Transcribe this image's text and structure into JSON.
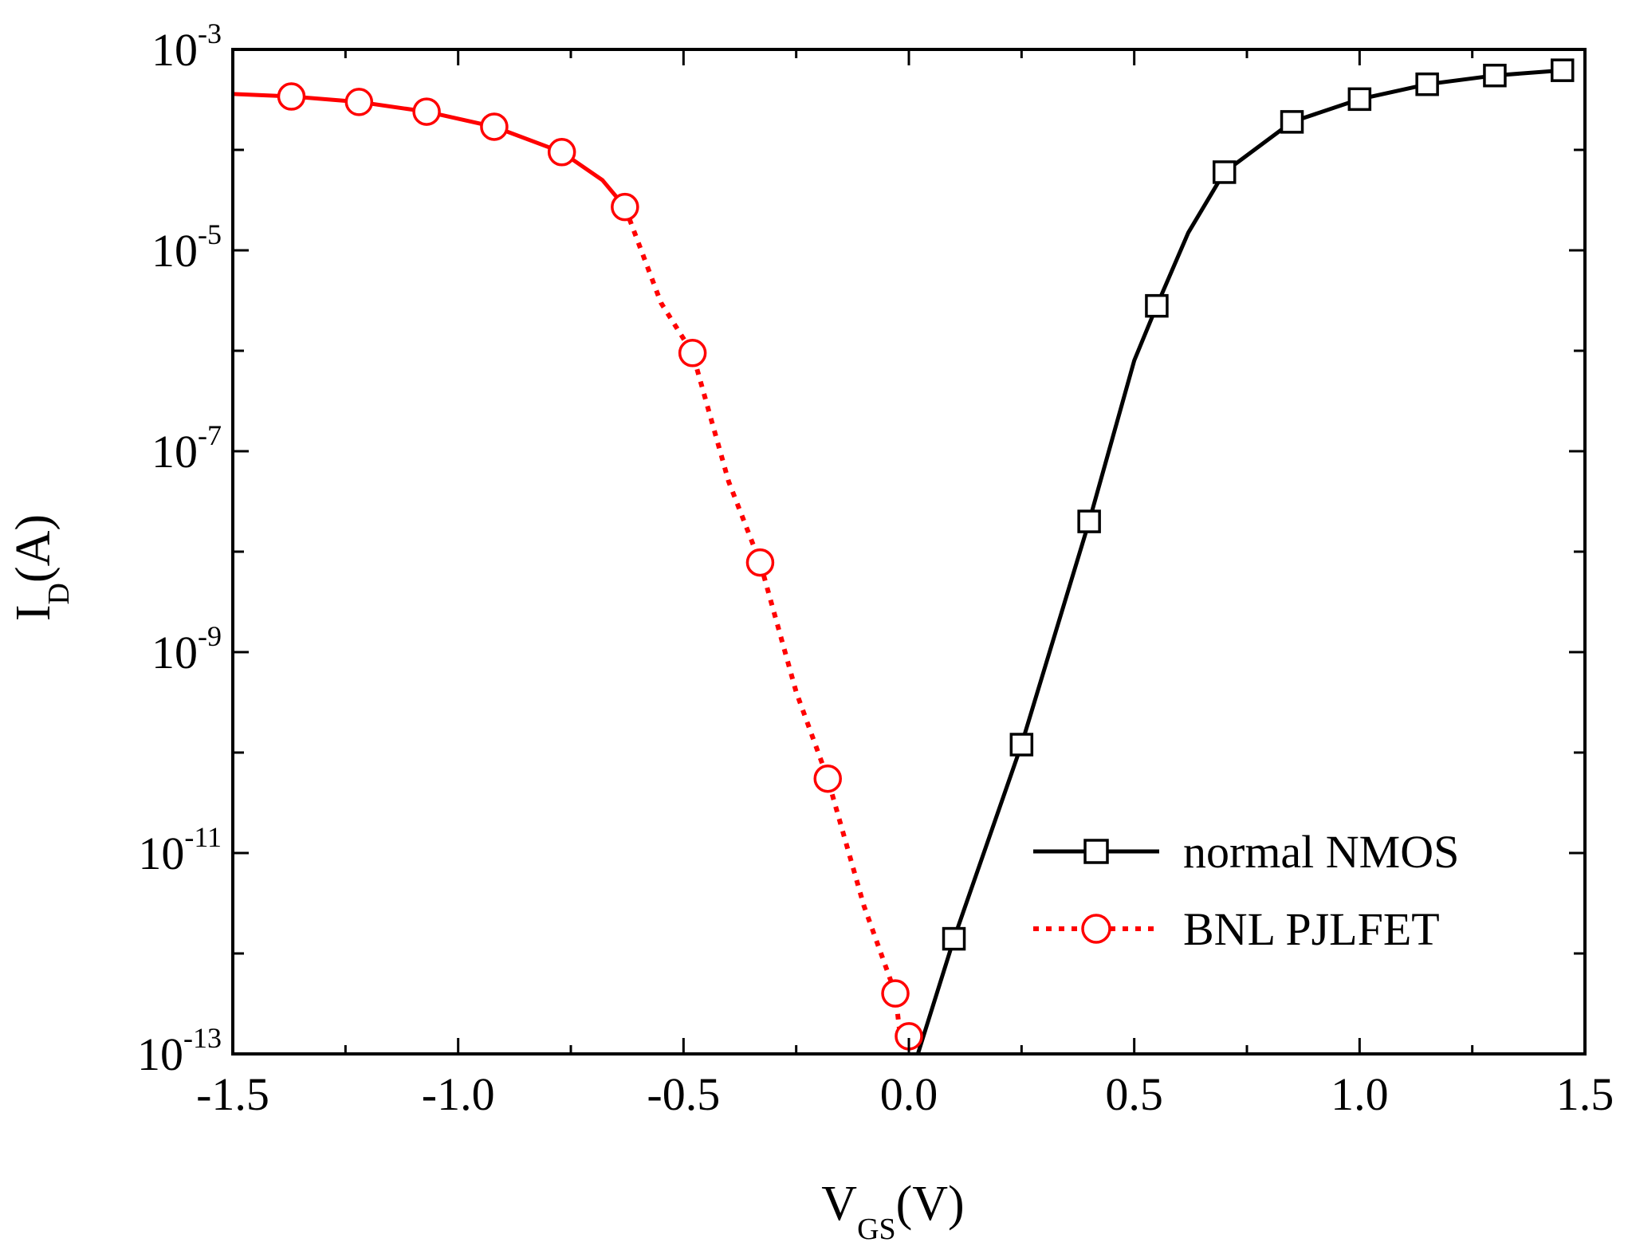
{
  "chart_data": {
    "type": "line",
    "yscale": "log",
    "xlabel": {
      "main": "V",
      "sub": "GS",
      "unit": "(V)"
    },
    "ylabel": {
      "main": "I",
      "sub": "D",
      "unit": "(A)"
    },
    "xlim": [
      -1.5,
      1.5
    ],
    "ylim": [
      1e-13,
      0.001
    ],
    "xticks": [
      -1.5,
      -1.0,
      -0.5,
      0.0,
      0.5,
      1.0,
      1.5
    ],
    "xtick_labels": [
      "-1.5",
      "-1.0",
      "-0.5",
      "0.0",
      "0.5",
      "1.0",
      "1.5"
    ],
    "yticks": [
      1e-13,
      1e-11,
      1e-09,
      1e-07,
      1e-05,
      0.001
    ],
    "ytick_labels": [
      {
        "base": "10",
        "exp": "-13"
      },
      {
        "base": "10",
        "exp": "-11"
      },
      {
        "base": "10",
        "exp": "-9"
      },
      {
        "base": "10",
        "exp": "-7"
      },
      {
        "base": "10",
        "exp": "-5"
      },
      {
        "base": "10",
        "exp": "-3"
      }
    ],
    "legend_position": "bottom-right",
    "series": [
      {
        "name": "normal NMOS",
        "color": "#000000",
        "line": "solid",
        "marker": "square",
        "curve": [
          [
            0.02,
            1e-13
          ],
          [
            0.1,
            1.4e-12
          ],
          [
            0.25,
            1.2e-10
          ],
          [
            0.4,
            2e-08
          ],
          [
            0.5,
            8e-07
          ],
          [
            0.55,
            2.8e-06
          ],
          [
            0.62,
            1.5e-05
          ],
          [
            0.7,
            6e-05
          ],
          [
            0.85,
            0.00019
          ],
          [
            1.0,
            0.00032
          ],
          [
            1.15,
            0.00045
          ],
          [
            1.3,
            0.00055
          ],
          [
            1.45,
            0.00062
          ]
        ],
        "markers": [
          [
            0.1,
            1.4e-12
          ],
          [
            0.25,
            1.2e-10
          ],
          [
            0.4,
            2e-08
          ],
          [
            0.55,
            2.8e-06
          ],
          [
            0.7,
            6e-05
          ],
          [
            0.85,
            0.00019
          ],
          [
            1.0,
            0.00032
          ],
          [
            1.15,
            0.00045
          ],
          [
            1.3,
            0.00055
          ],
          [
            1.45,
            0.00062
          ]
        ]
      },
      {
        "name": "BNL PJLFET",
        "color": "#ff0000",
        "line": "dotted",
        "marker": "circle",
        "solid_until": -0.63,
        "curve": [
          [
            -1.5,
            0.00036
          ],
          [
            -1.37,
            0.00034
          ],
          [
            -1.22,
            0.0003
          ],
          [
            -1.07,
            0.00024
          ],
          [
            -0.92,
            0.00017
          ],
          [
            -0.77,
            9.5e-05
          ],
          [
            -0.68,
            5e-05
          ],
          [
            -0.63,
            2.7e-05
          ],
          [
            -0.55,
            3e-06
          ],
          [
            -0.48,
            9.5e-07
          ],
          [
            -0.4,
            5e-08
          ],
          [
            -0.33,
            7.8e-09
          ],
          [
            -0.25,
            4e-10
          ],
          [
            -0.18,
            5.5e-11
          ],
          [
            -0.1,
            3e-12
          ],
          [
            -0.03,
            4e-13
          ],
          [
            -0.02,
            1.6e-13
          ],
          [
            0.0,
            1.5e-13
          ]
        ],
        "markers": [
          [
            -1.37,
            0.00034
          ],
          [
            -1.22,
            0.0003
          ],
          [
            -1.07,
            0.00024
          ],
          [
            -0.92,
            0.00017
          ],
          [
            -0.77,
            9.5e-05
          ],
          [
            -0.63,
            2.7e-05
          ],
          [
            -0.48,
            9.5e-07
          ],
          [
            -0.33,
            7.8e-09
          ],
          [
            -0.18,
            5.5e-11
          ],
          [
            -0.03,
            4e-13
          ],
          [
            0.0,
            1.5e-13
          ]
        ]
      }
    ]
  }
}
